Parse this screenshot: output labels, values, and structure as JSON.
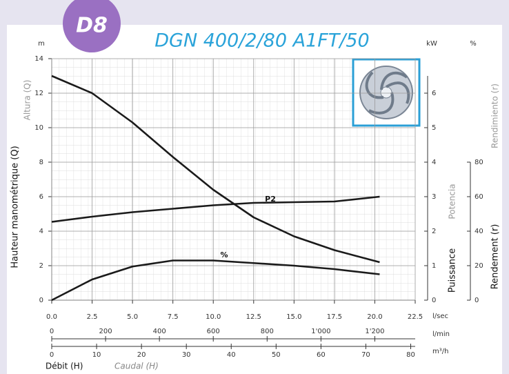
{
  "chart_data": {
    "type": "line",
    "badge": "D8",
    "title": "DGN 400/2/80 A1FT/50",
    "xlabel": "Débit (H)",
    "xlabel_alt": "Caudal (H)",
    "ylabel": "Hauteur manométrique (Q)",
    "ylabel_alt": "Altura (Q)",
    "y2label": "Puissance",
    "y2label_alt": "Potencia",
    "y3label": "Rendement (r)",
    "y3label_alt": "Rendimiento (r)",
    "x_unit": "l/sec",
    "x2_unit": "l/min",
    "x3_unit": "m³/h",
    "y_unit": "m",
    "y2_unit": "kW",
    "y3_unit": "%",
    "xlim": [
      0,
      22.5
    ],
    "xticks": [
      {
        "value": 0,
        "label": "0.0"
      },
      2.5,
      {
        "value": 5,
        "label": "5.0"
      },
      7.5,
      {
        "value": 10,
        "label": "10.0"
      },
      12.5,
      {
        "value": 15,
        "label": "15.0"
      },
      17.5,
      {
        "value": 20,
        "label": "20.0"
      },
      22.5
    ],
    "x2lim": [
      0,
      1350
    ],
    "x2ticks": [
      0,
      200,
      400,
      600,
      800,
      {
        "value": 1000,
        "label": "1'000"
      },
      {
        "value": 1200,
        "label": "1'200"
      }
    ],
    "x3lim": [
      0,
      81
    ],
    "x3ticks": [
      0,
      10,
      20,
      30,
      40,
      50,
      60,
      70,
      80
    ],
    "ylim": [
      0,
      14
    ],
    "yticks": [
      0,
      2,
      4,
      6,
      8,
      10,
      12,
      14
    ],
    "y2lim": [
      0,
      7
    ],
    "y2ticks": [
      0,
      1,
      2,
      3,
      4,
      5,
      6
    ],
    "y3lim": [
      0,
      140
    ],
    "y3ticks": [
      0,
      20,
      40,
      60,
      80
    ],
    "grid": true,
    "x": [
      0,
      2.5,
      5,
      7.5,
      10,
      12.5,
      15,
      17.5,
      20.3
    ],
    "series": [
      {
        "color": "#1a1a1a",
        "axis": "y",
        "values": [
          13.0,
          12.0,
          10.3,
          8.3,
          6.4,
          4.8,
          3.7,
          2.9,
          2.2
        ]
      },
      {
        "name": "P2",
        "color": "#1a1a1a",
        "axis": "y2",
        "values": [
          2.27,
          2.42,
          2.55,
          2.65,
          2.75,
          2.82,
          2.84,
          2.86,
          3.0
        ]
      },
      {
        "name": "%",
        "color": "#1a1a1a",
        "axis": "y3",
        "values": [
          0,
          12,
          19.5,
          23,
          23,
          21.5,
          20,
          18,
          15
        ]
      }
    ]
  }
}
